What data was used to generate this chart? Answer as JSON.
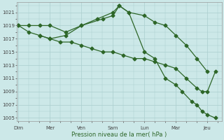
{
  "xlabel": "Pression niveau de la mer( hPa )",
  "bg_color": "#cce8e8",
  "grid_color": "#aacece",
  "line_color": "#2d6628",
  "ylim": [
    1004.5,
    1022.5
  ],
  "yticks": [
    1005,
    1007,
    1009,
    1011,
    1013,
    1015,
    1017,
    1019,
    1021
  ],
  "day_labels": [
    "Dim",
    "Mer",
    "Ven",
    "Sam",
    "Lun",
    "Mar",
    "Jeu"
  ],
  "day_positions": [
    0,
    1,
    2,
    3,
    4,
    5,
    6
  ],
  "xlim": [
    -0.05,
    6.45
  ],
  "series": [
    {
      "x": [
        0,
        0.33,
        0.67,
        1.0,
        1.5,
        2.0,
        2.5,
        3.0,
        3.2,
        3.5,
        4.0,
        4.33,
        4.67,
        5.0,
        5.33,
        5.67,
        6.0
      ],
      "y": [
        1019,
        1019,
        1019,
        1019,
        1018,
        1019,
        1020,
        1021,
        1022,
        1021,
        1020.5,
        1019.5,
        1019,
        1017.5,
        1016,
        1014,
        1012
      ],
      "linestyle": "-"
    },
    {
      "x": [
        0,
        0.33,
        0.67,
        1.0,
        1.33,
        1.67,
        2.0,
        2.33,
        2.67,
        3.0,
        3.33,
        3.67,
        4.0,
        4.33,
        4.67,
        5.0,
        5.33,
        5.67,
        5.83,
        6.0,
        6.25
      ],
      "y": [
        1019,
        1018,
        1017.5,
        1017,
        1016.5,
        1016.5,
        1016,
        1015.5,
        1015,
        1015,
        1014.5,
        1014,
        1014,
        1013.5,
        1013,
        1012.5,
        1011,
        1009.5,
        1009,
        1009,
        1012
      ],
      "linestyle": "-"
    },
    {
      "x": [
        0.67,
        1.0,
        1.5,
        2.0,
        2.67,
        3.0,
        3.2,
        3.5,
        4.0,
        4.33,
        4.67,
        5.0,
        5.2,
        5.5,
        5.67,
        5.83,
        6.0,
        6.25
      ],
      "y": [
        1017.5,
        1017,
        1017.5,
        1019,
        1020,
        1020.5,
        1022,
        1021,
        1015,
        1014,
        1011,
        1010,
        1009,
        1007.5,
        1007,
        1006,
        1005.5,
        1005
      ],
      "linestyle": "-"
    }
  ]
}
